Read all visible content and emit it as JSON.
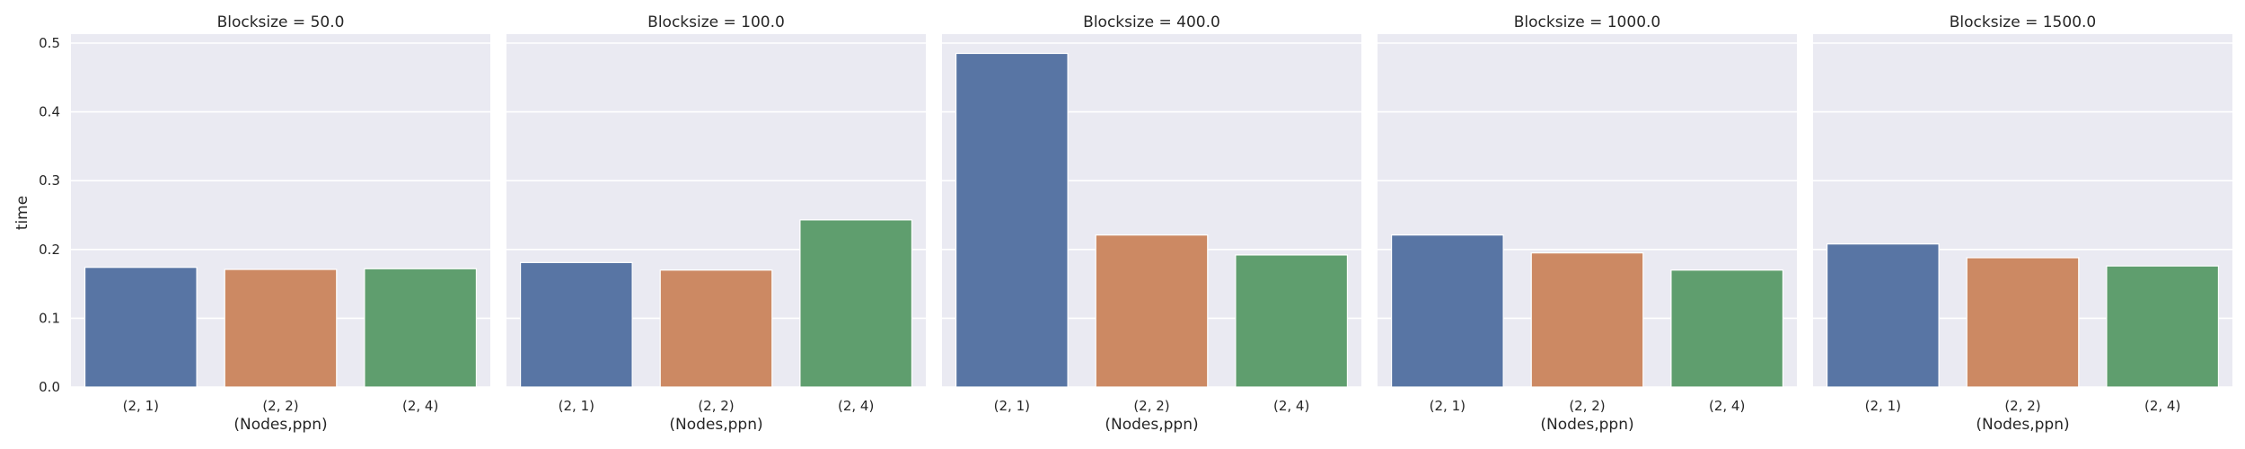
{
  "chart_data": {
    "type": "bar",
    "layout": "facet-grid",
    "facet_titles": [
      "Blocksize = 50.0",
      "Blocksize = 100.0",
      "Blocksize = 400.0",
      "Blocksize = 1000.0",
      "Blocksize = 1500.0"
    ],
    "categories": [
      "(2, 1)",
      "(2, 2)",
      "(2, 4)"
    ],
    "colors": [
      "#5875a4",
      "#cc8963",
      "#5f9e6e"
    ],
    "xlabel": "(Nodes,ppn)",
    "ylabel": "time",
    "ylim": [
      0,
      0.5
    ],
    "yticks": [
      "0.0",
      "0.1",
      "0.2",
      "0.3",
      "0.4",
      "0.5"
    ],
    "grid": true,
    "sharey": true,
    "panels": [
      {
        "values": [
          0.174,
          0.171,
          0.172
        ]
      },
      {
        "values": [
          0.181,
          0.17,
          0.243
        ]
      },
      {
        "values": [
          0.485,
          0.221,
          0.192
        ]
      },
      {
        "values": [
          0.221,
          0.195,
          0.17
        ]
      },
      {
        "values": [
          0.208,
          0.188,
          0.176
        ]
      }
    ]
  }
}
